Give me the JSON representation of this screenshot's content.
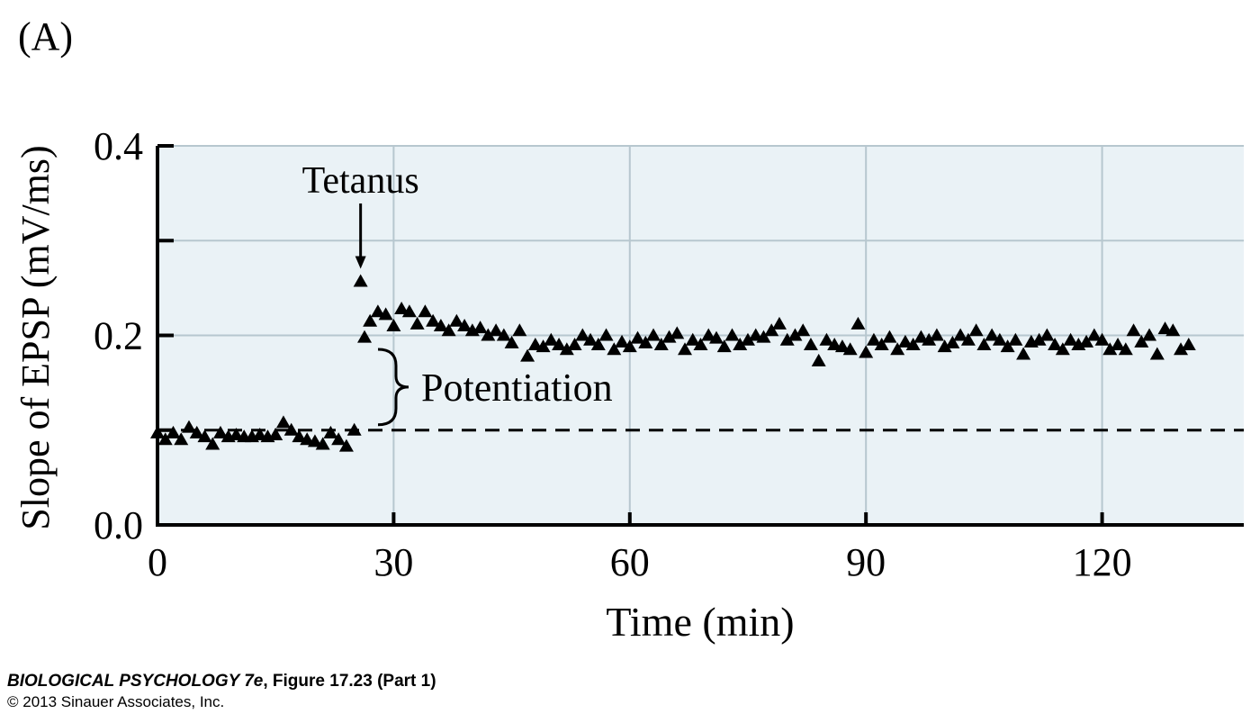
{
  "panel_label": "(A)",
  "chart_data": {
    "type": "scatter",
    "ylabel": "Slope of EPSP (mV/ms)",
    "xlabel": "Time (min)",
    "xlim": [
      0,
      138
    ],
    "ylim": [
      0,
      0.4
    ],
    "xticks": [
      0,
      30,
      60,
      90,
      120
    ],
    "yticks": [
      {
        "value": 0,
        "label": "0.0"
      },
      0.2,
      0.4
    ],
    "yminor_ticks": [
      0.1,
      0.3
    ],
    "grid": true,
    "baseline": 0.1,
    "marker": "triangle",
    "color": "#000000",
    "background": "#eaf2f6",
    "annotations": [
      {
        "text": "Tetanus"
      },
      {
        "text": "Potentiation"
      }
    ],
    "x": [
      0,
      1,
      2,
      3,
      4,
      5,
      6,
      7,
      8,
      9,
      10,
      11,
      12,
      13,
      14,
      15,
      16,
      17,
      18,
      19,
      20,
      21,
      22,
      23,
      24,
      25,
      25.8,
      26.3,
      27,
      28,
      29,
      30,
      31,
      32,
      33,
      34,
      35,
      36,
      37,
      38,
      39,
      40,
      41,
      42,
      43,
      44,
      45,
      46,
      47,
      48,
      49,
      50,
      51,
      52,
      53,
      54,
      55,
      56,
      57,
      58,
      59,
      60,
      61,
      62,
      63,
      64,
      65,
      66,
      67,
      68,
      69,
      70,
      71,
      72,
      73,
      74,
      75,
      76,
      77,
      78,
      79,
      80,
      81,
      82,
      83,
      84,
      85,
      86,
      87,
      88,
      89,
      90,
      91,
      92,
      93,
      94,
      95,
      96,
      97,
      98,
      99,
      100,
      101,
      102,
      103,
      104,
      105,
      106,
      107,
      108,
      109,
      110,
      111,
      112,
      113,
      114,
      115,
      116,
      117,
      118,
      119,
      120,
      121,
      122,
      123,
      124,
      125,
      126,
      127,
      128,
      129,
      130,
      131
    ],
    "values": [
      0.097,
      0.09,
      0.097,
      0.09,
      0.103,
      0.097,
      0.093,
      0.085,
      0.097,
      0.093,
      0.095,
      0.093,
      0.093,
      0.095,
      0.093,
      0.095,
      0.108,
      0.1,
      0.093,
      0.09,
      0.088,
      0.085,
      0.097,
      0.09,
      0.083,
      0.1,
      0.257,
      0.198,
      0.215,
      0.225,
      0.222,
      0.21,
      0.228,
      0.225,
      0.212,
      0.225,
      0.215,
      0.21,
      0.205,
      0.215,
      0.21,
      0.205,
      0.208,
      0.2,
      0.205,
      0.2,
      0.192,
      0.205,
      0.178,
      0.19,
      0.188,
      0.195,
      0.19,
      0.185,
      0.19,
      0.2,
      0.195,
      0.19,
      0.2,
      0.185,
      0.193,
      0.188,
      0.197,
      0.192,
      0.2,
      0.19,
      0.198,
      0.202,
      0.185,
      0.195,
      0.19,
      0.2,
      0.197,
      0.188,
      0.2,
      0.19,
      0.195,
      0.2,
      0.198,
      0.205,
      0.212,
      0.195,
      0.2,
      0.205,
      0.19,
      0.173,
      0.195,
      0.19,
      0.188,
      0.185,
      0.212,
      0.182,
      0.195,
      0.19,
      0.198,
      0.185,
      0.193,
      0.19,
      0.198,
      0.195,
      0.2,
      0.188,
      0.192,
      0.2,
      0.195,
      0.205,
      0.19,
      0.2,
      0.195,
      0.188,
      0.195,
      0.18,
      0.193,
      0.195,
      0.2,
      0.19,
      0.185,
      0.195,
      0.19,
      0.193,
      0.2,
      0.195,
      0.185,
      0.19,
      0.185,
      0.205,
      0.193,
      0.2,
      0.18,
      0.207,
      0.205,
      0.185,
      0.19
    ]
  },
  "footer": {
    "book": "BIOLOGICAL PSYCHOLOGY 7e",
    "figure": ", Figure 17.23 (Part 1)",
    "copyright": "© 2013 Sinauer Associates, Inc."
  }
}
